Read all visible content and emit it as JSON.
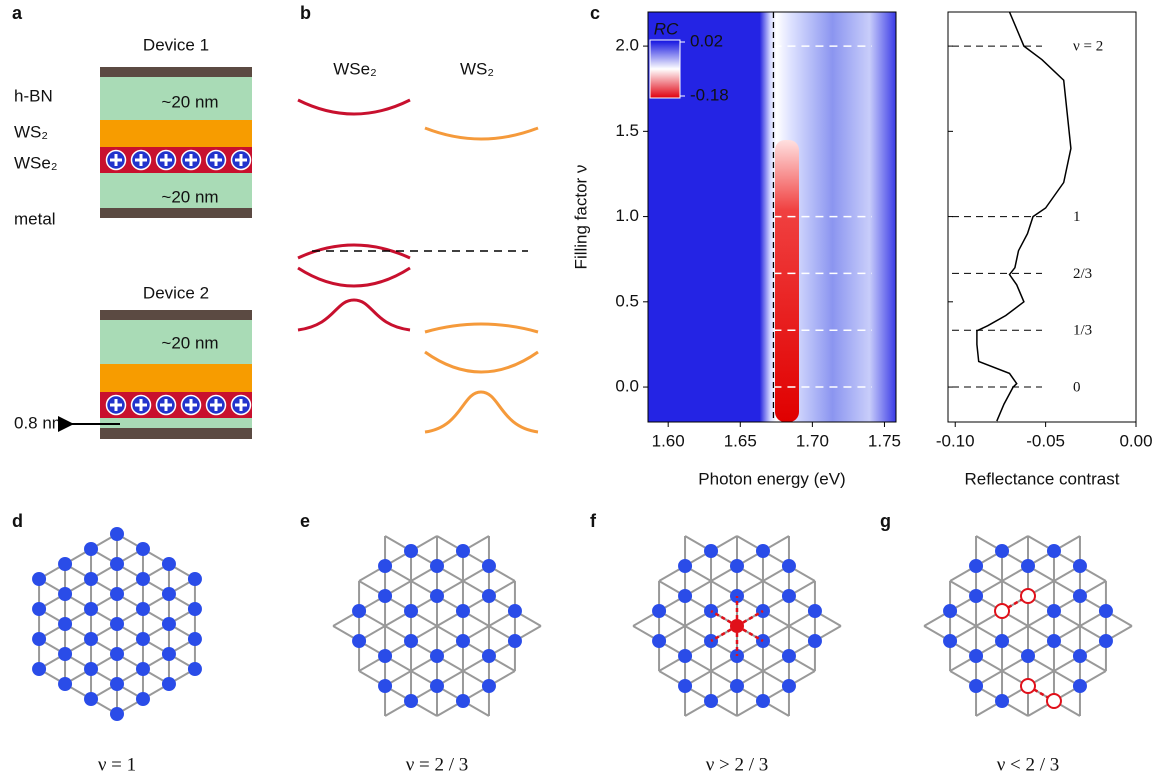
{
  "panel_labels": [
    "a",
    "b",
    "c",
    "d",
    "e",
    "f",
    "g"
  ],
  "panel_a": {
    "device1_title": "Device 1",
    "device2_title": "Device 2",
    "layer_labels": [
      "h-BN",
      "WS₂",
      "WSe₂",
      "metal"
    ],
    "thickness_labels": [
      "~20 nm",
      "~20 nm",
      "~20 nm"
    ],
    "spacer_label": "0.8 nm"
  },
  "panel_b": {
    "labels": [
      "WSe₂",
      "WS₂"
    ]
  },
  "chart_data": [
    {
      "type": "heatmap",
      "xlabel": "Photon energy (eV)",
      "ylabel": "Filling factor ν",
      "xlim": [
        1.586,
        1.758
      ],
      "ylim": [
        -0.205,
        2.2
      ],
      "xticks": [
        {
          "value": 1.6,
          "label": "1.60"
        },
        {
          "value": 1.65,
          "label": "1.65"
        },
        {
          "value": 1.7,
          "label": "1.70"
        },
        {
          "value": 1.75,
          "label": "1.75"
        }
      ],
      "yticks": [
        {
          "value": 0,
          "label": "0.0"
        },
        0.5,
        {
          "value": 1,
          "label": "1.0"
        },
        1.5,
        {
          "value": 2,
          "label": "2.0"
        }
      ],
      "colorbar": {
        "label": "RC",
        "ticks": [
          0.02,
          -0.18
        ]
      },
      "vline": 1.673,
      "hlines": [
        0,
        0.333,
        0.667,
        1,
        2
      ]
    },
    {
      "type": "line",
      "xlabel": "Reflectance contrast",
      "color": "#000000",
      "xlim": [
        -0.104,
        0
      ],
      "ylim": [
        -0.205,
        2.2
      ],
      "xticks": [
        {
          "value": -0.1,
          "label": "-0.10"
        },
        {
          "value": -0.05,
          "label": "-0.05"
        },
        {
          "value": 0,
          "label": "0.00"
        }
      ],
      "yticks": [
        0,
        0.5,
        1,
        1.5,
        2
      ],
      "x": [
        -0.07,
        -0.066,
        -0.062,
        -0.052,
        -0.04,
        -0.038,
        -0.036,
        -0.04,
        -0.05,
        -0.057,
        -0.06,
        -0.065,
        -0.067,
        -0.07,
        -0.066,
        -0.062,
        -0.072,
        -0.082,
        -0.088,
        -0.088,
        -0.087,
        -0.07,
        -0.066,
        -0.068,
        -0.073,
        -0.077
      ],
      "y": [
        2.2,
        2.1,
        2.0,
        1.92,
        1.8,
        1.6,
        1.4,
        1.2,
        1.05,
        1.0,
        0.9,
        0.8,
        0.7,
        0.66,
        0.6,
        0.5,
        0.42,
        0.36,
        0.33,
        0.25,
        0.15,
        0.08,
        0.02,
        0.0,
        -0.1,
        -0.2
      ],
      "annotations": [
        {
          "y": 2,
          "text": "ν = 2"
        },
        {
          "y": 1,
          "text": "1"
        },
        {
          "y": 0.667,
          "text": "2/3"
        },
        {
          "y": 0.333,
          "text": "1/3"
        },
        {
          "y": 0,
          "text": "0"
        }
      ]
    }
  ],
  "lattice_captions": [
    "ν = 1",
    "ν = 2 / 3",
    "ν > 2 / 3",
    "ν < 2 / 3"
  ]
}
